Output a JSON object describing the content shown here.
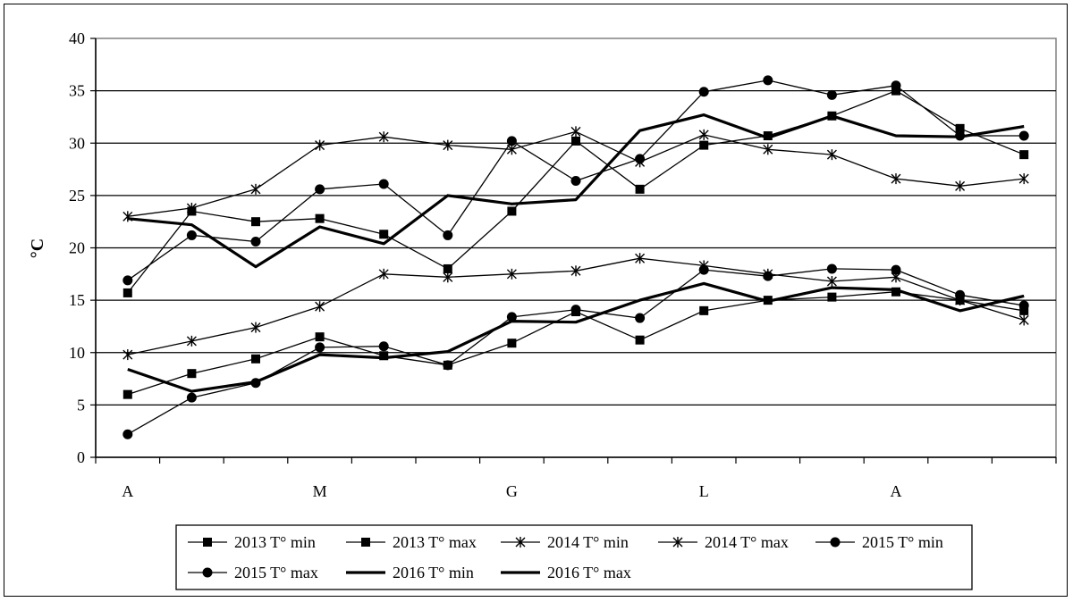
{
  "chart_data": {
    "type": "line",
    "ylabel": "°C",
    "xlabel": "",
    "ylim": [
      0,
      40
    ],
    "yticks": [
      "0",
      "5",
      "10",
      "15",
      "20",
      "25",
      "30",
      "35",
      "40"
    ],
    "xtick_labels": [
      "A",
      "M",
      "G",
      "L",
      "A"
    ],
    "grid": "horizontal",
    "legend_position": "bottom",
    "x": [
      1,
      2,
      3,
      4,
      5,
      6,
      7,
      8,
      9,
      10,
      11,
      12,
      13,
      14,
      15
    ],
    "series": [
      {
        "name": "2013 T° min",
        "marker": "square",
        "width": 1.3,
        "values": [
          6.0,
          8.0,
          9.4,
          11.5,
          9.7,
          8.8,
          10.9,
          13.9,
          11.2,
          14.0,
          15.0,
          15.3,
          15.8,
          15.0,
          14.0
        ]
      },
      {
        "name": "2013 T° max",
        "marker": "square",
        "width": 1.3,
        "values": [
          15.7,
          23.5,
          22.5,
          22.8,
          21.3,
          18.0,
          23.5,
          30.2,
          25.6,
          29.8,
          30.7,
          32.6,
          35.0,
          31.4,
          28.9
        ]
      },
      {
        "name": "2014 T° min",
        "marker": "star",
        "width": 1.3,
        "values": [
          9.8,
          11.1,
          12.4,
          14.4,
          17.5,
          17.2,
          17.5,
          17.8,
          19.0,
          18.3,
          17.5,
          16.8,
          17.2,
          15.0,
          13.1
        ]
      },
      {
        "name": "2014 T° max",
        "marker": "star",
        "width": 1.3,
        "values": [
          23.0,
          23.8,
          25.6,
          29.8,
          30.6,
          29.8,
          29.4,
          31.1,
          28.2,
          30.8,
          29.4,
          28.9,
          26.6,
          25.9,
          26.6
        ]
      },
      {
        "name": "2015 T° min",
        "marker": "circle",
        "width": 1.3,
        "values": [
          2.2,
          5.7,
          7.1,
          10.5,
          10.6,
          8.8,
          13.4,
          14.1,
          13.3,
          17.9,
          17.3,
          18.0,
          17.9,
          15.5,
          14.5
        ]
      },
      {
        "name": "2015 T° max",
        "marker": "circle",
        "width": 1.3,
        "values": [
          16.9,
          21.2,
          20.6,
          25.6,
          26.1,
          21.2,
          30.2,
          26.4,
          28.5,
          34.9,
          36.0,
          34.6,
          35.5,
          30.7,
          30.7
        ]
      },
      {
        "name": "2016 T° min",
        "marker": "none",
        "width": 3.2,
        "values": [
          8.4,
          6.3,
          7.2,
          9.8,
          9.5,
          10.1,
          13.0,
          12.9,
          15.0,
          16.6,
          14.9,
          16.2,
          16.0,
          14.0,
          15.4
        ]
      },
      {
        "name": "2016 T° max",
        "marker": "none",
        "width": 3.2,
        "values": [
          22.8,
          22.2,
          18.2,
          22.0,
          20.4,
          25.0,
          24.2,
          24.6,
          31.2,
          32.7,
          30.5,
          32.6,
          30.7,
          30.6,
          31.6
        ]
      }
    ]
  }
}
